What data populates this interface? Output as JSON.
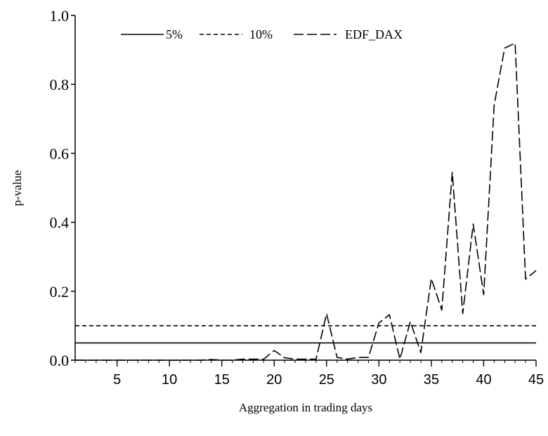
{
  "chart_data": {
    "type": "line",
    "xlabel": "Aggregation in trading days",
    "ylabel": "p-value",
    "xlim": [
      1,
      45
    ],
    "ylim": [
      0,
      1
    ],
    "x_ticks": [
      5,
      10,
      15,
      20,
      25,
      30,
      35,
      40,
      45
    ],
    "y_ticks": [
      "0.0",
      "0.2",
      "0.4",
      "0.6",
      "0.8",
      "1.0"
    ],
    "grid": false,
    "legend_position": "top",
    "x": [
      1,
      2,
      3,
      4,
      5,
      6,
      7,
      8,
      9,
      10,
      11,
      12,
      13,
      14,
      15,
      16,
      17,
      18,
      19,
      20,
      21,
      22,
      23,
      24,
      25,
      26,
      27,
      28,
      29,
      30,
      31,
      32,
      33,
      34,
      35,
      36,
      37,
      38,
      39,
      40,
      41,
      42,
      43,
      44,
      45
    ],
    "series": [
      {
        "name": "5%",
        "style": "solid",
        "values": [
          0.05,
          0.05,
          0.05,
          0.05,
          0.05,
          0.05,
          0.05,
          0.05,
          0.05,
          0.05,
          0.05,
          0.05,
          0.05,
          0.05,
          0.05,
          0.05,
          0.05,
          0.05,
          0.05,
          0.05,
          0.05,
          0.05,
          0.05,
          0.05,
          0.05,
          0.05,
          0.05,
          0.05,
          0.05,
          0.05,
          0.05,
          0.05,
          0.05,
          0.05,
          0.05,
          0.05,
          0.05,
          0.05,
          0.05,
          0.05,
          0.05,
          0.05,
          0.05,
          0.05,
          0.05
        ]
      },
      {
        "name": "10%",
        "style": "short-dash",
        "values": [
          0.1,
          0.1,
          0.1,
          0.1,
          0.1,
          0.1,
          0.1,
          0.1,
          0.1,
          0.1,
          0.1,
          0.1,
          0.1,
          0.1,
          0.1,
          0.1,
          0.1,
          0.1,
          0.1,
          0.1,
          0.1,
          0.1,
          0.1,
          0.1,
          0.1,
          0.1,
          0.1,
          0.1,
          0.1,
          0.1,
          0.1,
          0.1,
          0.1,
          0.1,
          0.1,
          0.1,
          0.1,
          0.1,
          0.1,
          0.1,
          0.1,
          0.1,
          0.1,
          0.1,
          0.1
        ]
      },
      {
        "name": "EDF_DAX",
        "style": "long-dash",
        "values": [
          0.0,
          0.0,
          0.0,
          0.0,
          0.0,
          0.0,
          0.0,
          0.0,
          0.0,
          0.0,
          0.0,
          0.0,
          0.0,
          0.002,
          0.0,
          0.0,
          0.003,
          0.003,
          0.003,
          0.028,
          0.007,
          0.003,
          0.003,
          0.003,
          0.135,
          0.008,
          0.003,
          0.008,
          0.008,
          0.108,
          0.132,
          0.003,
          0.112,
          0.022,
          0.237,
          0.145,
          0.545,
          0.135,
          0.395,
          0.19,
          0.74,
          0.905,
          0.92,
          0.235,
          0.26
        ]
      }
    ]
  }
}
